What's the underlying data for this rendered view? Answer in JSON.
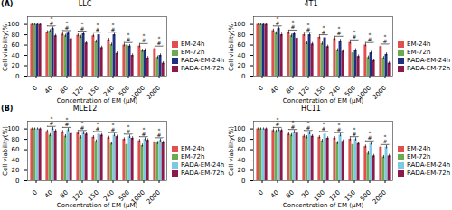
{
  "chart_data": [
    {
      "type": "bar",
      "title": "LLC",
      "panel_label": "(A)",
      "categories": [
        "0",
        "40",
        "80",
        "120",
        "150",
        "240",
        "500",
        "1000",
        "2000"
      ],
      "series": [
        {
          "name": "EM-24h",
          "color": "#e05050",
          "values": [
            100,
            85,
            81,
            79,
            78,
            70,
            60,
            58,
            53
          ],
          "errors": [
            2,
            3,
            3,
            3,
            3,
            3,
            3,
            3,
            3
          ]
        },
        {
          "name": "EM-72h",
          "color": "#6aaa50",
          "values": [
            100,
            87,
            78,
            76,
            67,
            61,
            60,
            49,
            36
          ],
          "errors": [
            2,
            3,
            3,
            3,
            3,
            3,
            3,
            3,
            3
          ]
        },
        {
          "name": "RADA-EM-24h",
          "color": "#1f3080",
          "values": [
            100,
            92,
            83,
            82,
            80,
            80,
            58,
            50,
            40
          ],
          "errors": [
            2,
            3,
            3,
            3,
            3,
            3,
            3,
            3,
            3
          ]
        },
        {
          "name": "RADA-EM-72h",
          "color": "#8b1a4a",
          "values": [
            100,
            78,
            72,
            64,
            55,
            44,
            40,
            35,
            25
          ],
          "errors": [
            2,
            3,
            3,
            3,
            3,
            3,
            3,
            3,
            3
          ]
        }
      ],
      "brackets": [
        {
          "category": "40",
          "y": 97,
          "labels": [
            "#",
            "*"
          ]
        },
        {
          "category": "80",
          "y": 88,
          "labels": [
            "#",
            "*"
          ]
        },
        {
          "category": "120",
          "y": 87,
          "labels": [
            "#",
            "*"
          ]
        },
        {
          "category": "150",
          "y": 85,
          "labels": [
            "#",
            "*"
          ]
        },
        {
          "category": "240",
          "y": 85,
          "labels": [
            "#",
            "*"
          ]
        },
        {
          "category": "500",
          "y": 65,
          "labels": [
            "#",
            "*"
          ]
        },
        {
          "category": "1000",
          "y": 63,
          "labels": [
            "#",
            "*"
          ]
        },
        {
          "category": "2000",
          "y": 58,
          "labels": [
            "#",
            "*"
          ]
        }
      ],
      "xlabel": "Concentration of EM (μM)",
      "ylabel": "Cell viability(%)",
      "ylim": [
        0,
        115
      ],
      "yticks": [
        0,
        20,
        40,
        60,
        80,
        100
      ],
      "legend": "right",
      "grid": false
    },
    {
      "type": "bar",
      "title": "4T1",
      "categories": [
        "0",
        "40",
        "80",
        "120",
        "150",
        "240",
        "500",
        "1000",
        "2000"
      ],
      "series": [
        {
          "name": "EM-24h",
          "color": "#e05050",
          "values": [
            100,
            88,
            84,
            80,
            75,
            72,
            65,
            60,
            57
          ],
          "errors": [
            2,
            3,
            3,
            3,
            3,
            3,
            3,
            3,
            3
          ]
        },
        {
          "name": "EM-72h",
          "color": "#6aaa50",
          "values": [
            100,
            83,
            78,
            64,
            63,
            50,
            45,
            36,
            35
          ],
          "errors": [
            2,
            3,
            3,
            3,
            3,
            3,
            3,
            3,
            3
          ]
        },
        {
          "name": "RADA-EM-24h",
          "color": "#1f3080",
          "values": [
            100,
            92,
            82,
            80,
            74,
            68,
            50,
            45,
            42
          ],
          "errors": [
            2,
            3,
            3,
            3,
            3,
            3,
            3,
            3,
            3
          ]
        },
        {
          "name": "RADA-EM-72h",
          "color": "#8b1a4a",
          "values": [
            100,
            80,
            73,
            62,
            57,
            48,
            38,
            30,
            25
          ],
          "errors": [
            2,
            3,
            3,
            3,
            3,
            3,
            3,
            3,
            3
          ]
        }
      ],
      "brackets": [
        {
          "category": "40",
          "y": 97,
          "labels": [
            "#",
            "*"
          ]
        },
        {
          "category": "80",
          "y": 89,
          "labels": [
            "#",
            "*"
          ]
        },
        {
          "category": "120",
          "y": 85,
          "labels": [
            "#",
            "*"
          ]
        },
        {
          "category": "150",
          "y": 80,
          "labels": [
            "#",
            "*"
          ]
        },
        {
          "category": "240",
          "y": 77,
          "labels": [
            "#",
            "*"
          ]
        },
        {
          "category": "500",
          "y": 70,
          "labels": [
            "#",
            "*"
          ]
        },
        {
          "category": "1000",
          "y": 65,
          "labels": [
            "#",
            "*"
          ]
        },
        {
          "category": "2000",
          "y": 62,
          "labels": [
            "#",
            "*"
          ]
        }
      ],
      "xlabel": "Concentration of EM (μM)",
      "ylabel": "Cell viability(%)",
      "ylim": [
        0,
        115
      ],
      "yticks": [
        0,
        20,
        40,
        60,
        80,
        100
      ],
      "legend": "right",
      "grid": false
    },
    {
      "type": "bar",
      "title": "MLE12",
      "panel_label": "(B)",
      "categories": [
        "0",
        "40",
        "80",
        "120",
        "150",
        "240",
        "500",
        "1000",
        "2000"
      ],
      "series": [
        {
          "name": "EM-24h",
          "color": "#e05050",
          "values": [
            100,
            95,
            94,
            92,
            84,
            83,
            80,
            77,
            75
          ],
          "errors": [
            2,
            3,
            3,
            3,
            3,
            3,
            3,
            3,
            3
          ]
        },
        {
          "name": "EM-72h",
          "color": "#6aaa50",
          "values": [
            100,
            88,
            86,
            84,
            76,
            72,
            70,
            68,
            73
          ],
          "errors": [
            2,
            3,
            3,
            3,
            3,
            3,
            3,
            3,
            3
          ]
        },
        {
          "name": "RADA-EM-24h",
          "color": "#7ec8e3",
          "values": [
            100,
            100,
            98,
            92,
            90,
            88,
            85,
            80,
            78
          ],
          "errors": [
            2,
            3,
            3,
            3,
            3,
            3,
            3,
            3,
            3
          ]
        },
        {
          "name": "RADA-EM-72h",
          "color": "#8b1a4a",
          "values": [
            100,
            96,
            91,
            90,
            88,
            85,
            82,
            78,
            74
          ],
          "errors": [
            2,
            3,
            3,
            3,
            3,
            3,
            3,
            3,
            3
          ]
        }
      ],
      "brackets": [
        {
          "category": "40",
          "y": 105,
          "labels": [
            "#",
            "*"
          ]
        },
        {
          "category": "80",
          "y": 103,
          "labels": [
            "#",
            "*"
          ]
        },
        {
          "category": "120",
          "y": 97,
          "labels": [
            "#",
            "*"
          ]
        },
        {
          "category": "150",
          "y": 95,
          "labels": [
            "#",
            "*"
          ]
        },
        {
          "category": "240",
          "y": 93,
          "labels": [
            "#",
            "*"
          ]
        },
        {
          "category": "500",
          "y": 90,
          "labels": [
            "#",
            "*"
          ]
        },
        {
          "category": "1000",
          "y": 85,
          "labels": [
            "#",
            "*"
          ]
        },
        {
          "category": "2000",
          "y": 83,
          "labels": [
            "#",
            "*"
          ]
        }
      ],
      "xlabel": "Concentration of EM (μM)",
      "ylabel": "Cell viability(%)",
      "ylim": [
        0,
        115
      ],
      "yticks": [
        0,
        20,
        40,
        60,
        80,
        100
      ],
      "legend": "right",
      "grid": false
    },
    {
      "type": "bar",
      "title": "HC11",
      "categories": [
        "0",
        "40",
        "80",
        "90",
        "100",
        "120",
        "150",
        "500",
        "2000"
      ],
      "series": [
        {
          "name": "EM-24h",
          "color": "#e05050",
          "values": [
            100,
            97,
            90,
            86,
            84,
            82,
            80,
            66,
            65
          ],
          "errors": [
            2,
            3,
            3,
            3,
            3,
            3,
            3,
            3,
            3
          ]
        },
        {
          "name": "EM-72h",
          "color": "#6aaa50",
          "values": [
            100,
            95,
            88,
            84,
            77,
            73,
            70,
            53,
            46
          ],
          "errors": [
            2,
            3,
            3,
            3,
            3,
            3,
            3,
            3,
            3
          ]
        },
        {
          "name": "RADA-EM-24h",
          "color": "#7ec8e3",
          "values": [
            100,
            98,
            94,
            92,
            90,
            88,
            80,
            72,
            65
          ],
          "errors": [
            2,
            3,
            3,
            3,
            3,
            3,
            3,
            3,
            3
          ]
        },
        {
          "name": "RADA-EM-72h",
          "color": "#8b1a4a",
          "values": [
            100,
            97,
            92,
            86,
            82,
            76,
            72,
            48,
            48
          ],
          "errors": [
            2,
            3,
            3,
            3,
            3,
            3,
            3,
            3,
            3
          ]
        }
      ],
      "brackets": [
        {
          "category": "40",
          "y": 103,
          "labels": [
            "#",
            "*"
          ]
        },
        {
          "category": "80",
          "y": 99,
          "labels": [
            "#",
            "*"
          ]
        },
        {
          "category": "90",
          "y": 97,
          "labels": [
            "#",
            "*"
          ]
        },
        {
          "category": "100",
          "y": 95,
          "labels": [
            "#",
            "*"
          ]
        },
        {
          "category": "120",
          "y": 93,
          "labels": [
            "#",
            "*"
          ]
        },
        {
          "category": "150",
          "y": 85,
          "labels": [
            "#",
            "*"
          ]
        },
        {
          "category": "500",
          "y": 77,
          "labels": [
            "#",
            "*"
          ]
        },
        {
          "category": "2000",
          "y": 70,
          "labels": [
            "#",
            "*"
          ]
        }
      ],
      "xlabel": "Concentration of EM (μM)",
      "ylabel": "Cell viability(%)",
      "ylim": [
        0,
        115
      ],
      "yticks": [
        0,
        20,
        40,
        60,
        80,
        100
      ],
      "legend": "right",
      "grid": false
    }
  ]
}
